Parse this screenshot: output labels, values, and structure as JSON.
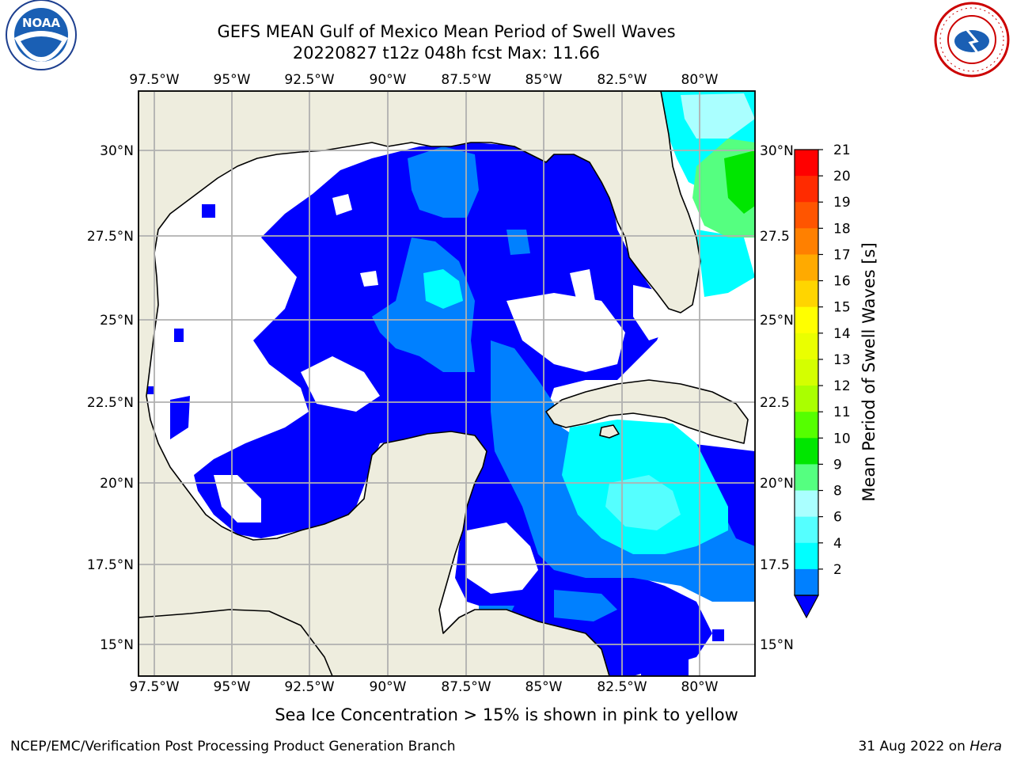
{
  "title_line1": "GEFS MEAN Gulf of Mexico Mean Period of Swell Waves",
  "title_line2": "20220827 t12z 048h fcst   Max: 11.66",
  "footnote": "Sea Ice Concentration > 15% is shown in pink to yellow",
  "credit_left": "NCEP/EMC/Verification Post Processing Product Generation Branch",
  "credit_right_date": "31 Aug 2022 on",
  "credit_right_host": "Hera",
  "logos": {
    "left": "NOAA",
    "right": "NATIONAL WEATHER SERVICE"
  },
  "map": {
    "lon_labels": [
      "97.5°W",
      "95°W",
      "92.5°W",
      "90°W",
      "87.5°W",
      "85°W",
      "82.5°W",
      "80°W"
    ],
    "lat_labels": [
      "30°N",
      "27.5°N",
      "25°N",
      "22.5°N",
      "20°N",
      "17.5°N",
      "15°N"
    ],
    "lat_labels_right": [
      "30°N",
      "27.5",
      "25°N",
      "22.5",
      "20°N",
      "17.5",
      "15°N"
    ],
    "colors": {
      "land": "#eeedde",
      "grid": "#b0b0b0",
      "coast": "#000000"
    }
  },
  "colorbar": {
    "label": "Mean Period of Swell Waves [s]",
    "ticks": [
      "21",
      "20",
      "19",
      "18",
      "17",
      "16",
      "15",
      "14",
      "13",
      "12",
      "11",
      "10",
      "9",
      "8",
      "6",
      "4",
      "2"
    ],
    "colors": [
      "#ff0000",
      "#ff2b00",
      "#ff5500",
      "#ff8000",
      "#ffaa00",
      "#ffd500",
      "#ffff00",
      "#eaff00",
      "#d4ff00",
      "#aaff00",
      "#55ff00",
      "#00e600",
      "#55ff80",
      "#aaffff",
      "#55ffff",
      "#00ffff",
      "#0080ff"
    ],
    "extend_color": "#0000ff"
  }
}
